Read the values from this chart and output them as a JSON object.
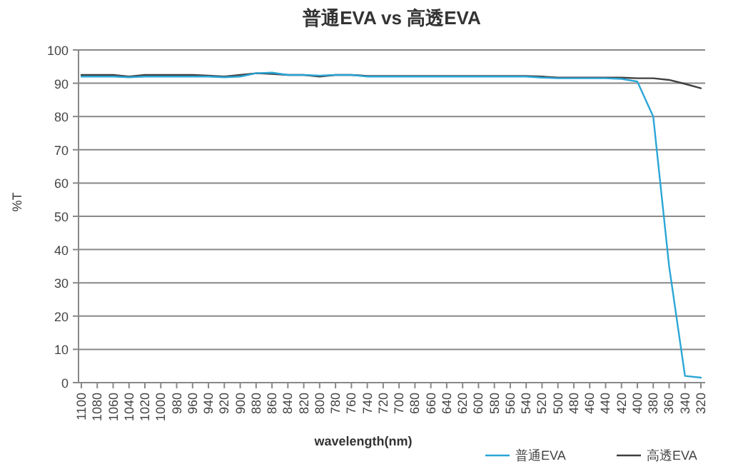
{
  "chart_data": {
    "type": "line",
    "title": "普通EVA vs 高透EVA",
    "xlabel": "wavelength(nm)",
    "ylabel": "%T",
    "categories": [
      "1100",
      "1080",
      "1060",
      "1040",
      "1020",
      "1000",
      "980",
      "960",
      "940",
      "920",
      "900",
      "880",
      "860",
      "840",
      "820",
      "800",
      "780",
      "760",
      "740",
      "720",
      "700",
      "680",
      "660",
      "640",
      "620",
      "600",
      "580",
      "560",
      "540",
      "520",
      "500",
      "480",
      "460",
      "440",
      "420",
      "400",
      "380",
      "360",
      "340",
      "320"
    ],
    "series": [
      {
        "name": "普通EVA",
        "color": "#2ba6d6",
        "values": [
          92,
          92,
          92,
          91.8,
          92,
          92,
          92,
          92,
          92,
          91.8,
          92,
          93,
          93.2,
          92.5,
          92.5,
          92.3,
          92.5,
          92.5,
          92,
          92,
          92,
          92,
          92,
          92,
          92,
          92,
          92,
          92,
          92,
          91.7,
          91.5,
          91.5,
          91.5,
          91.5,
          91.3,
          90.5,
          80,
          35,
          2,
          1.5
        ]
      },
      {
        "name": "高透EVA",
        "color": "#404040",
        "values": [
          92.5,
          92.5,
          92.5,
          92,
          92.5,
          92.5,
          92.5,
          92.5,
          92.3,
          92,
          92.5,
          93,
          92.8,
          92.5,
          92.5,
          92,
          92.5,
          92.5,
          92.2,
          92.2,
          92.2,
          92.2,
          92.2,
          92.2,
          92.2,
          92.2,
          92.2,
          92.2,
          92.2,
          92,
          91.7,
          91.7,
          91.7,
          91.7,
          91.7,
          91.5,
          91.5,
          91,
          89.8,
          88.5
        ]
      }
    ],
    "ylim": [
      0,
      100
    ],
    "yticks": [
      0,
      10,
      20,
      30,
      40,
      50,
      60,
      70,
      80,
      90,
      100
    ],
    "grid": "y",
    "legend": "bottom right",
    "marker": "none",
    "line_style": "solid"
  }
}
